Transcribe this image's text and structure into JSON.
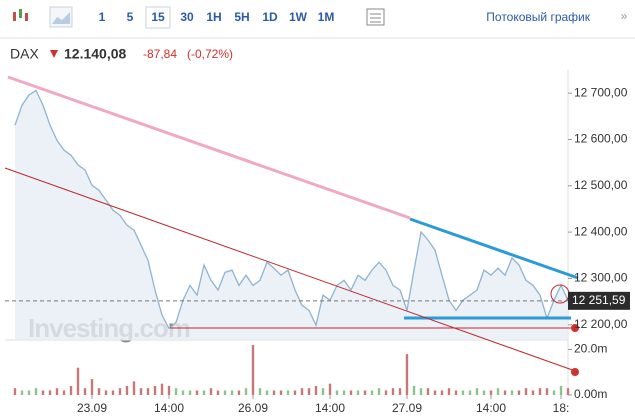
{
  "toolbar": {
    "intervals": [
      "1",
      "5",
      "15",
      "30",
      "1H",
      "5H",
      "1D",
      "1W",
      "1M"
    ],
    "selected_interval": "15",
    "stream_link": "Потоковый график",
    "more": "»"
  },
  "quote": {
    "symbol": "DAX",
    "last": "12.140,08",
    "change": "-87,84",
    "change_pct": "(-0,72%)"
  },
  "chart_data": {
    "type": "area",
    "watermark": "Investing.com",
    "categories": [
      null,
      null,
      null,
      null,
      null,
      null,
      null,
      null,
      null,
      null,
      null,
      "23.09",
      null,
      null,
      null,
      null,
      null,
      null,
      null,
      null,
      null,
      null,
      "14:00",
      null,
      null,
      null,
      null,
      null,
      null,
      null,
      null,
      null,
      null,
      null,
      "26.09",
      null,
      null,
      null,
      null,
      null,
      null,
      null,
      null,
      null,
      null,
      "14:00",
      null,
      null,
      null,
      null,
      null,
      null,
      null,
      null,
      null,
      null,
      "27.09",
      null,
      null,
      null,
      null,
      null,
      null,
      null,
      null,
      null,
      null,
      null,
      "14:00",
      null,
      null,
      null,
      null,
      null,
      null,
      null,
      null,
      null,
      "18:",
      null
    ],
    "series": [
      {
        "color": "#8fb3d3",
        "values": [
          12631,
          12674,
          12696,
          12706,
          12674,
          12631,
          12598,
          12577,
          12566,
          12545,
          12534,
          12501,
          12490,
          12469,
          12447,
          12436,
          12415,
          12404,
          12372,
          12339,
          12275,
          12221,
          12192,
          12205,
          12253,
          12285,
          12264,
          12329,
          12296,
          12275,
          12313,
          12318,
          12285,
          12307,
          12285,
          12296,
          12335,
          12322,
          12307,
          12318,
          12275,
          12242,
          12231,
          12199,
          12264,
          12253,
          12285,
          12296,
          12275,
          12307,
          12296,
          12318,
          12335,
          12318,
          12285,
          12275,
          12231,
          12318,
          12400,
          12383,
          12361,
          12307,
          12253,
          12231,
          12253,
          12264,
          12275,
          12318,
          12307,
          12322,
          12307,
          12344,
          12329,
          12296,
          12285,
          12264,
          12214,
          12253,
          12285,
          12253
        ]
      },
      {
        "type": "bar",
        "axis": "y2",
        "color": "#c77777",
        "up_color": "#8bc48b",
        "values": [
          3,
          2,
          2,
          3,
          2,
          2,
          3,
          2,
          4,
          12,
          3,
          7,
          3,
          2,
          2,
          3,
          4,
          6,
          3,
          3,
          4,
          5,
          4,
          3,
          2,
          2,
          2,
          2,
          3,
          2,
          2,
          2,
          2,
          3,
          22,
          3,
          2,
          2,
          2,
          2,
          2,
          3,
          3,
          4,
          3,
          5,
          2,
          2,
          2,
          2,
          2,
          2,
          3,
          2,
          3,
          3,
          18,
          4,
          3,
          3,
          2,
          2,
          3,
          2,
          2,
          2,
          3,
          2,
          2,
          3,
          2,
          2,
          2,
          3,
          2,
          3,
          3,
          2,
          4,
          3
        ]
      }
    ],
    "ylim": [
      12167,
      12750
    ],
    "yticks": [
      {
        "value": 12200,
        "label": "12 200,00"
      },
      {
        "value": 12300,
        "label": "12 300,00"
      },
      {
        "value": 12400,
        "label": "12 400,00"
      },
      {
        "value": 12500,
        "label": "12 500,00"
      },
      {
        "value": 12600,
        "label": "12 600,00"
      },
      {
        "value": 12700,
        "label": "12 700,00"
      }
    ],
    "y2lim": [
      0,
      22
    ],
    "y2ticks": [
      {
        "value": 0,
        "label": "0.00m"
      },
      {
        "value": 20,
        "label": "20.0m"
      }
    ],
    "last_value": 12251.59,
    "last_label": "12 251,59"
  }
}
